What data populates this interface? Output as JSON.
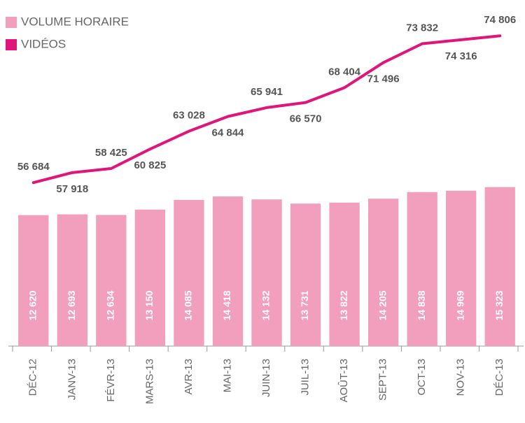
{
  "chart_data": {
    "type": "bar",
    "categories": [
      "DÉC-12",
      "JANV-13",
      "FÉVR-13",
      "MARS-13",
      "AVR-13",
      "MAI-13",
      "JUIN-13",
      "JUIL-13",
      "AOÛT-13",
      "SEPT-13",
      "OCT-13",
      "NOV-13",
      "DÉC-13"
    ],
    "series": [
      {
        "name": "VOLUME HORAIRE",
        "color": "#f29fbd",
        "type": "bar",
        "values": [
          12620,
          12693,
          12634,
          13150,
          14085,
          14418,
          14132,
          13731,
          13822,
          14205,
          14838,
          14969,
          15323
        ],
        "value_labels": [
          "12 620",
          "12 693",
          "12 634",
          "13 150",
          "14 085",
          "14 418",
          "14 132",
          "13 731",
          "13 822",
          "14 205",
          "14 838",
          "14 969",
          "15 323"
        ]
      },
      {
        "name": "VIDÉOS",
        "color": "#e0147a",
        "type": "line",
        "axis": "y2",
        "values": [
          56684,
          57918,
          58425,
          60825,
          63028,
          64844,
          65941,
          66570,
          68404,
          71496,
          73832,
          74316,
          74806
        ],
        "value_labels": [
          "56 684",
          "57 918",
          "58 425",
          "60 825",
          "63 028",
          "64 844",
          "65 941",
          "66 570",
          "68 404",
          "71 496",
          "73 832",
          "74 316",
          "74 806"
        ]
      }
    ],
    "ylim": [
      0,
      32000
    ],
    "y2lim": [
      36500,
      77500
    ],
    "grid": false,
    "legend": "top-left"
  }
}
